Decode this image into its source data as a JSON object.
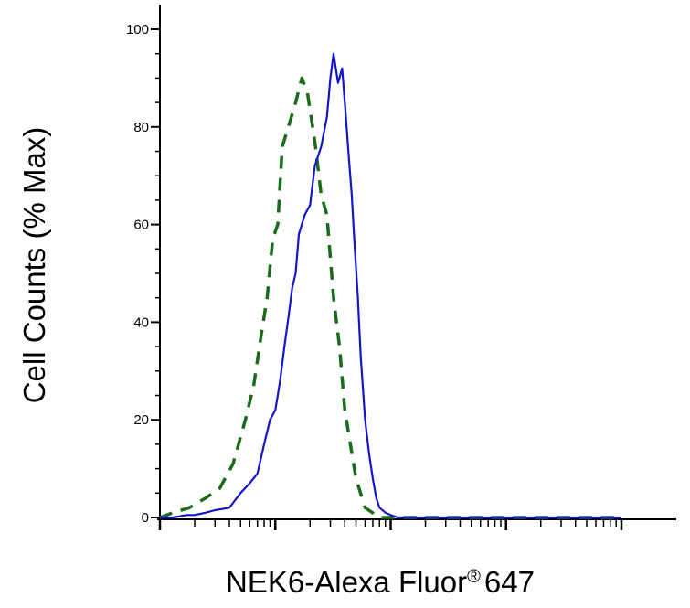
{
  "chart_data": {
    "type": "line",
    "title": "",
    "xlabel": "NEK6-Alexa Fluor",
    "xlabel_mark": "®",
    "xlabel_suffix": "647",
    "ylabel": "Cell Counts (% Max)",
    "xscale": "log",
    "xlim": [
      1,
      10000
    ],
    "ylim": [
      0,
      105
    ],
    "yticks": [
      0,
      20,
      40,
      60,
      80,
      100
    ],
    "ytick_labels": [
      "0",
      "20",
      "40",
      "60",
      "80",
      "100"
    ],
    "grid": false,
    "legend": "none",
    "series": [
      {
        "style": "dashed",
        "color": "#1a6b1a",
        "x": [
          1,
          1.3,
          1.8,
          2.5,
          3.3,
          4.3,
          5.5,
          6.5,
          7.5,
          8.5,
          9.5,
          10.5,
          11.5,
          13,
          15,
          17,
          19,
          22,
          25,
          28,
          32,
          36,
          40,
          50,
          60,
          80,
          100,
          1000,
          10000
        ],
        "y": [
          0,
          1,
          2,
          4,
          6,
          11,
          20,
          27,
          37,
          45,
          57,
          60,
          76,
          80,
          85,
          90,
          87,
          77,
          66,
          62,
          45,
          35,
          22,
          8,
          2,
          0,
          0,
          0,
          0
        ]
      },
      {
        "style": "solid",
        "color": "#1515cc",
        "x": [
          1,
          1.3,
          1.7,
          2,
          2.5,
          3,
          4,
          5,
          6,
          7,
          8,
          9,
          10,
          11,
          12,
          13,
          14,
          15,
          16,
          18,
          20,
          22,
          25,
          28,
          30,
          32,
          35,
          38,
          40,
          43,
          46,
          48,
          52,
          55,
          60,
          65,
          70,
          75,
          80,
          90,
          100,
          115,
          130,
          150,
          180,
          250,
          400,
          1000,
          10000
        ],
        "y": [
          0,
          0,
          0.5,
          0.5,
          1,
          1.5,
          2,
          5,
          7,
          9,
          15,
          20,
          22,
          28,
          35,
          41,
          47,
          50,
          58,
          62,
          64,
          72,
          76,
          82,
          90,
          95,
          89,
          92,
          85,
          75,
          66,
          58,
          45,
          33,
          20,
          13,
          8,
          4,
          2,
          1,
          0.5,
          0,
          0,
          0,
          0,
          0,
          0,
          0,
          0
        ]
      }
    ]
  }
}
